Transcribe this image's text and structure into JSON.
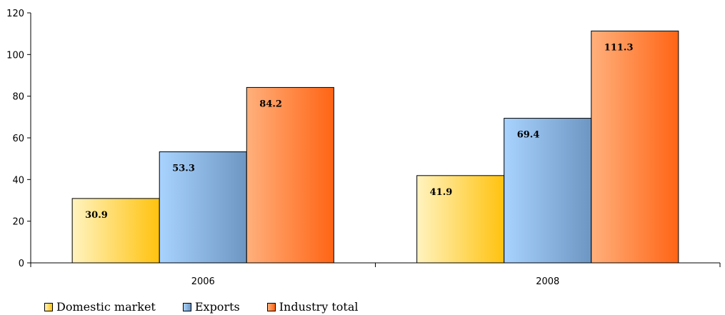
{
  "chart_data": {
    "type": "bar",
    "categories": [
      "2006",
      "2008"
    ],
    "series": [
      {
        "name": "Domestic market",
        "values": [
          30.9,
          41.9
        ],
        "colors": [
          "#fff3bf",
          "#ffc20e"
        ]
      },
      {
        "name": "Exports",
        "values": [
          53.3,
          69.4
        ],
        "colors": [
          "#a9d3ff",
          "#6e96c3"
        ]
      },
      {
        "name": "Industry total",
        "values": [
          84.2,
          111.3
        ],
        "colors": [
          "#ffb07c",
          "#ff6414"
        ]
      }
    ],
    "data_labels": [
      [
        "30.9",
        "41.9"
      ],
      [
        "53.3",
        "69.4"
      ],
      [
        "84.2",
        "111.3"
      ]
    ],
    "ylim": [
      0,
      120
    ],
    "yticks": [
      0,
      20,
      40,
      60,
      80,
      100,
      120
    ],
    "grid": false,
    "legend_position": "bottom-left"
  }
}
